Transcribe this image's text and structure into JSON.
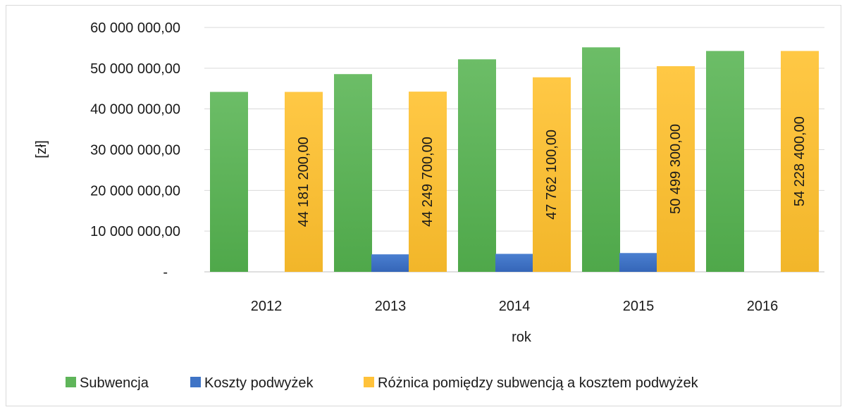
{
  "chart_data": {
    "type": "bar",
    "categories": [
      "2012",
      "2013",
      "2014",
      "2015",
      "2016"
    ],
    "series": [
      {
        "name": "Subwencja",
        "values": [
          44181200,
          48550000,
          52180000,
          55120000,
          54228400
        ],
        "color": "#5fb55a",
        "data_labels": [
          "",
          "",
          "",
          "",
          ""
        ]
      },
      {
        "name": "Koszty podwyżek",
        "values": [
          0,
          4300300,
          4417900,
          4620700,
          0
        ],
        "color": "#3f74c6",
        "data_labels": [
          "",
          "",
          "",
          "",
          ""
        ]
      },
      {
        "name": "Różnica pomiędzy subwencją a kosztem podwyżek",
        "values": [
          44181200,
          44249700,
          47762100,
          50499300,
          54228400
        ],
        "color": "#ffc23a",
        "data_labels": [
          "44 181 200,00",
          "44 249 700,00",
          "47 762 100,00",
          "50 499 300,00",
          "54 228 400,00"
        ]
      }
    ],
    "ylim": [
      0,
      60000000
    ],
    "y_ticks": [
      {
        "value": 0,
        "label": "-"
      },
      {
        "value": 10000000,
        "label": "10 000 000,00"
      },
      {
        "value": 20000000,
        "label": "20 000 000,00"
      },
      {
        "value": 30000000,
        "label": "30 000 000,00"
      },
      {
        "value": 40000000,
        "label": "40 000 000,00"
      },
      {
        "value": 50000000,
        "label": "50 000 000,00"
      },
      {
        "value": 60000000,
        "label": "60 000 000,00"
      }
    ],
    "xlabel": "rok",
    "ylabel": "[zł]",
    "title": "",
    "grid": true,
    "legend_position": "bottom"
  }
}
